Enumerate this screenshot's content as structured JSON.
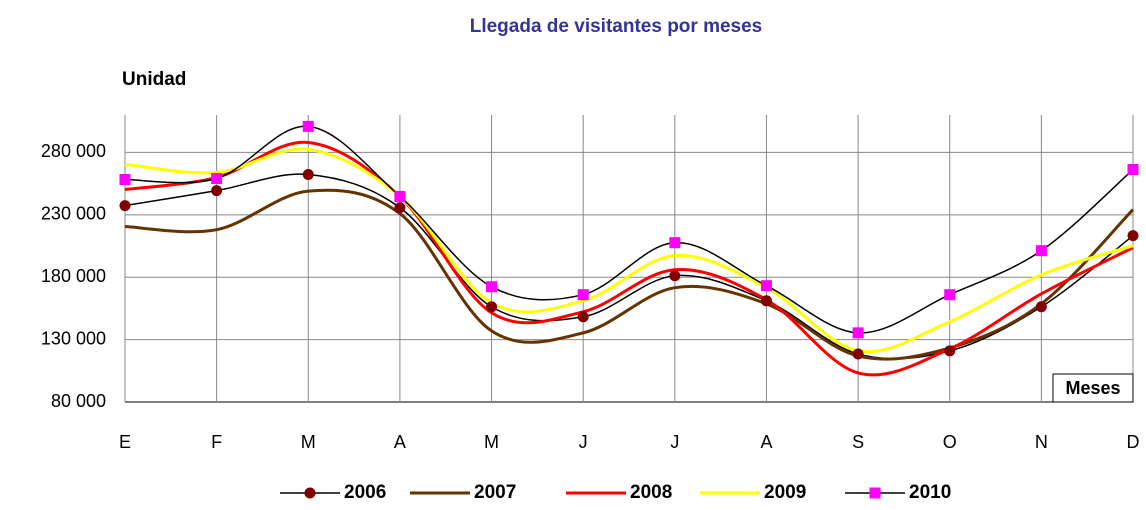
{
  "chart_data": {
    "type": "line",
    "title": "Llegada de visitantes por meses",
    "y_label": "Unidad",
    "x_label": "Meses",
    "categories": [
      "E",
      "F",
      "M",
      "A",
      "M",
      "J",
      "J",
      "A",
      "S",
      "O",
      "N",
      "D"
    ],
    "series": [
      {
        "name": "2006",
        "color": "#800000",
        "line_color": "#000000",
        "marker": "circle",
        "values": [
          237400,
          249400,
          262300,
          235800,
          156300,
          148300,
          181200,
          161100,
          118500,
          121000,
          156300,
          213300
        ]
      },
      {
        "name": "2007",
        "color": "#663300",
        "line_color": "#663300",
        "marker": null,
        "values": [
          220600,
          218100,
          249000,
          231000,
          137000,
          135400,
          171600,
          158700,
          116900,
          123300,
          158700,
          234200
        ]
      },
      {
        "name": "2008",
        "color": "#ff0000",
        "line_color": "#ff0000",
        "marker": null,
        "values": [
          250300,
          260000,
          288000,
          244700,
          151500,
          152300,
          186000,
          161900,
          103300,
          122600,
          166700,
          203700
        ]
      },
      {
        "name": "2009",
        "color": "#ffff00",
        "line_color": "#ffff00",
        "marker": null,
        "values": [
          270400,
          263900,
          282400,
          244700,
          159500,
          161100,
          197300,
          171600,
          121000,
          144300,
          182000,
          205300
        ]
      },
      {
        "name": "2010",
        "color": "#ff00ff",
        "line_color": "#000000",
        "marker": "square",
        "values": [
          258300,
          259100,
          300900,
          244700,
          172400,
          166000,
          207700,
          173200,
          135400,
          166000,
          201300,
          266300
        ]
      }
    ],
    "ylim": [
      80000,
      310000
    ],
    "yticks": [
      {
        "value": 80000,
        "label": "80 000"
      },
      {
        "value": 130000,
        "label": "130 000"
      },
      {
        "value": 180000,
        "label": "180 000"
      },
      {
        "value": 230000,
        "label": "230 000"
      },
      {
        "value": 280000,
        "label": "280 000"
      }
    ],
    "grid": true,
    "legend": "bottom"
  }
}
